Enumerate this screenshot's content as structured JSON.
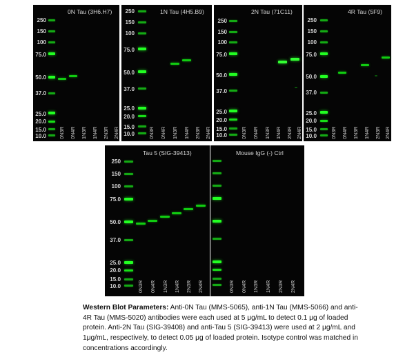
{
  "mw_markers": [
    "250",
    "150",
    "100",
    "75.0",
    "50.0",
    "37.0",
    "25.0",
    "20.0",
    "15.0",
    "10.0"
  ],
  "lane_labels": [
    "0N3R",
    "0N4R",
    "1N3R",
    "1N4R",
    "2N3R",
    "2N4R"
  ],
  "panels": [
    {
      "title": "0N Tau (3H6.H7)",
      "bands": [
        0,
        0,
        null,
        null,
        null,
        null
      ]
    },
    {
      "title": "1N Tau (4H5.B9)",
      "bands": [
        null,
        null,
        1,
        1,
        null,
        null
      ]
    },
    {
      "title": "2N Tau (71C11)",
      "bands": [
        null,
        null,
        null,
        null,
        1,
        1
      ]
    },
    {
      "title": "4R Tau (5F9)",
      "bands": [
        null,
        1,
        null,
        1,
        null,
        1
      ]
    },
    {
      "title": "Tau 5 (SIG-39413)",
      "bands": [
        1,
        1,
        1,
        1,
        1,
        1
      ]
    },
    {
      "title": "Mouse IgG (-) Ctrl",
      "bands": [
        null,
        null,
        null,
        null,
        null,
        null
      ]
    }
  ],
  "caption": {
    "heading": "Western Blot Parameters:",
    "body": " Anti-0N Tau (MMS-5065), anti-1N Tau (MMS-5066) and anti-4R Tau (MMS-5020) antibodies were each used at 5 μg/mL to detect 0.1 μg of loaded protein. Anti-2N Tau (SIG-39408) and anti-Tau 5 (SIG-39413) were used at 2 μg/mL and 1μg/mL, respectively, to detect 0.05 μg of loaded protein. Isotype control was matched in concentrations accordingly."
  }
}
